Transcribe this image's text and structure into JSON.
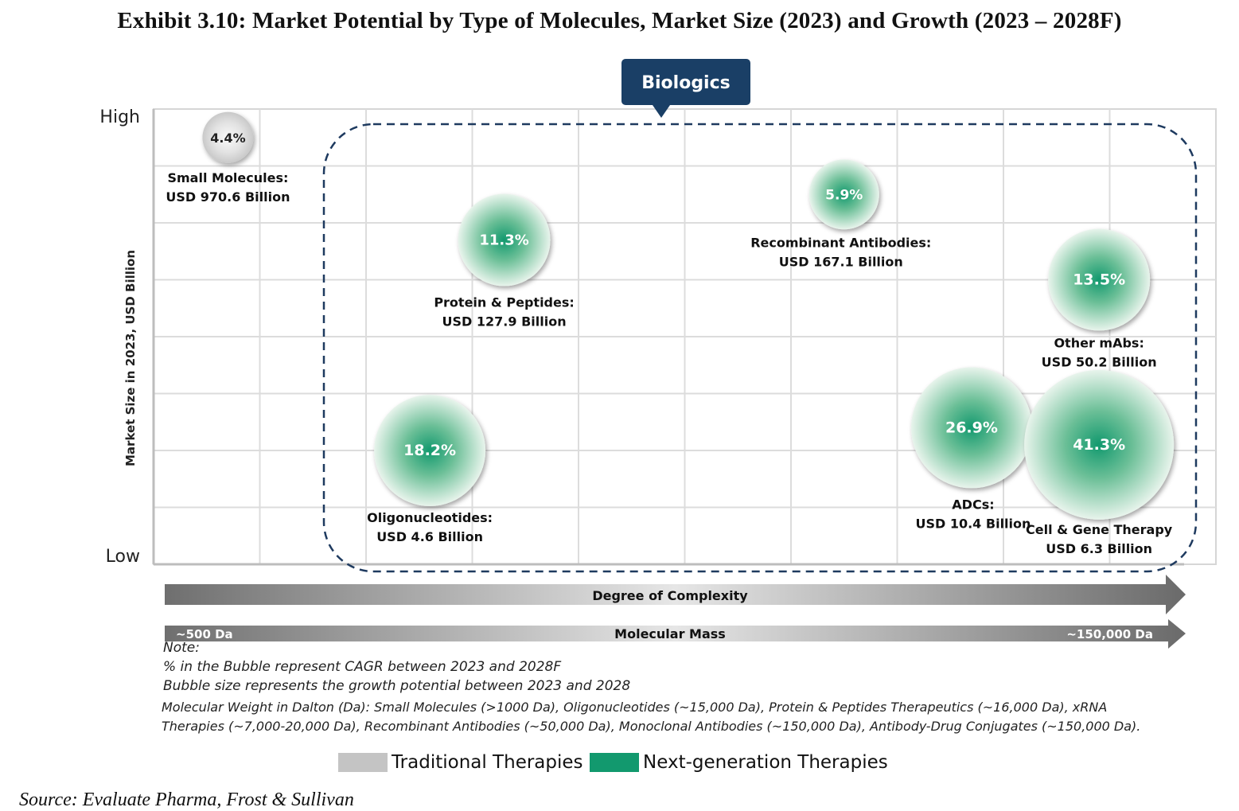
{
  "title": "Exhibit 3.10: Market Potential by Type of Molecules, Market Size (2023) and Growth (2023 – 2028F)",
  "chart_data": {
    "type": "bubble",
    "y_axis": {
      "label": "Market Size in 2023, USD Billion",
      "top_label": "High",
      "bottom_label": "Low"
    },
    "x_axis": {
      "label": "Degree of Complexity",
      "sub_label": "Molecular Mass",
      "start_label": "~500 Da",
      "end_label": "~150,000 Da"
    },
    "group": {
      "label": "Biologics"
    },
    "grid": true,
    "colors": {
      "traditional": "#c4c4c4",
      "next_generation": "#12996e"
    },
    "bubbles": [
      {
        "name": "Small Molecules:",
        "value": "USD 970.6 Billion",
        "cagr": "4.4%",
        "category": "traditional",
        "x_rank": 0.7,
        "y_rank": 7.5
      },
      {
        "name": "Protein & Peptides:",
        "value": "USD 127.9 Billion",
        "cagr": "11.3%",
        "category": "next_generation",
        "x_rank": 3.3,
        "y_rank": 5.7
      },
      {
        "name": "Recombinant Antibodies:",
        "value": "USD 167.1 Billion",
        "cagr": "5.9%",
        "category": "next_generation",
        "x_rank": 6.5,
        "y_rank": 6.5
      },
      {
        "name": "Other mAbs:",
        "value": "USD 50.2 Billion",
        "cagr": "13.5%",
        "category": "next_generation",
        "x_rank": 8.9,
        "y_rank": 5.0
      },
      {
        "name": "Oligonucleotides:",
        "value": "USD 4.6 Billion",
        "cagr": "18.2%",
        "category": "next_generation",
        "x_rank": 2.6,
        "y_rank": 2.0
      },
      {
        "name": "ADCs:",
        "value": "USD 10.4 Billion",
        "cagr": "26.9%",
        "category": "next_generation",
        "x_rank": 7.7,
        "y_rank": 2.4
      },
      {
        "name": "Cell & Gene Therapy",
        "value": "USD 6.3 Billion",
        "cagr": "41.3%",
        "category": "next_generation",
        "x_rank": 8.9,
        "y_rank": 2.1
      }
    ]
  },
  "notes": {
    "heading": "Note:",
    "line1": "% in the Bubble represent CAGR between 2023 and 2028F",
    "line2": "Bubble size represents the growth potential between 2023 and 2028",
    "line3": "Molecular Weight in Dalton (Da): Small Molecules (>1000 Da), Oligonucleotides (~15,000 Da), Protein & Peptides Therapeutics (~16,000 Da), xRNA",
    "line4": "Therapies (~7,000-20,000 Da), Recombinant Antibodies (~50,000 Da), Monoclonal Antibodies (~150,000 Da), Antibody-Drug Conjugates (~150,000 Da)."
  },
  "legend": {
    "traditional": "Traditional Therapies",
    "next_generation": "Next-generation Therapies"
  },
  "source": "Source: Evaluate Pharma, Frost & Sullivan"
}
